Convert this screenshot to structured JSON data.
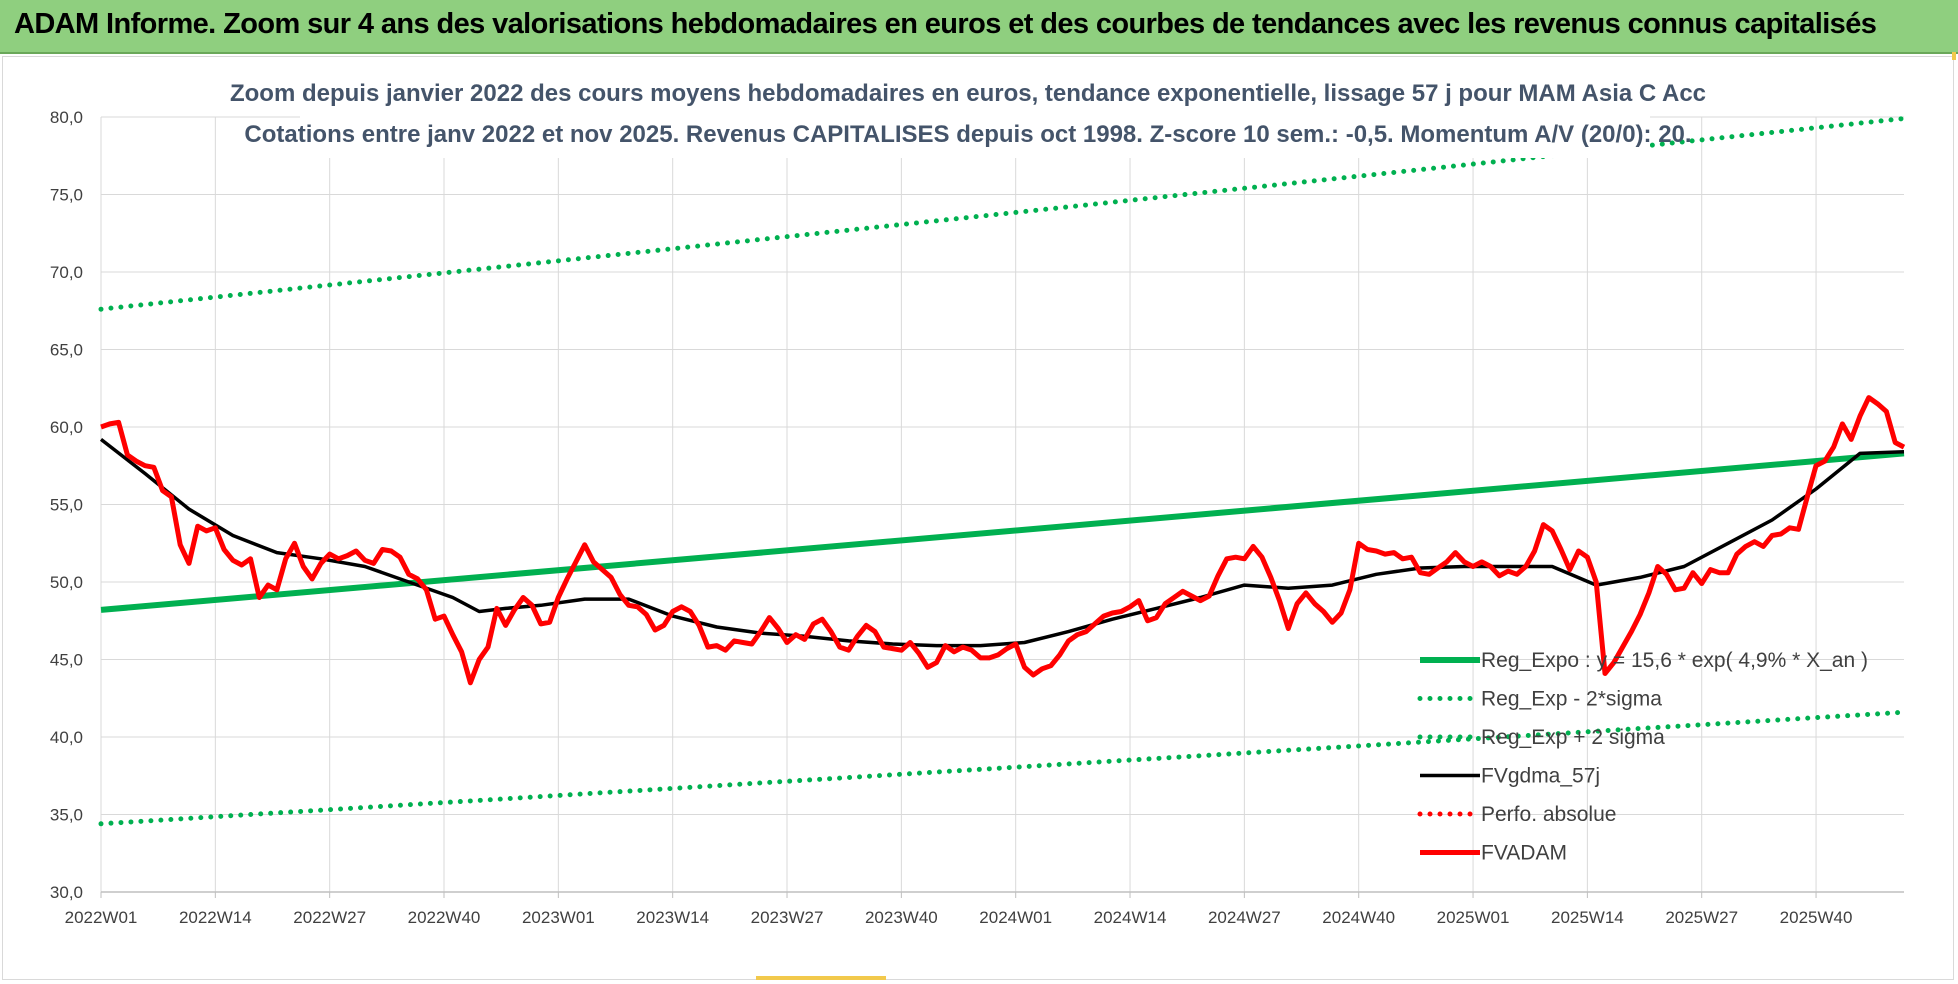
{
  "banner": {
    "title": "ADAM Informe. Zoom sur 4 ans des valorisations hebdomadaires en euros et des courbes de tendances avec les revenus connus capitalisés"
  },
  "chart_data": {
    "type": "line",
    "title": "",
    "subtitle_lines": [
      "Zoom depuis janvier 2022 des cours moyens hebdomadaires en euros, tendance exponentielle, lissage 57 j pour MAM Asia C Acc",
      "Cotations entre janv 2022 et nov 2025. Revenus CAPITALISES depuis oct 1998. Z-score 10 sem.: -0,5. Momentum A/V (20/0): 20."
    ],
    "xlabel": "",
    "ylabel": "",
    "ylim": [
      30,
      80
    ],
    "yticks": [
      "30,0",
      "35,0",
      "40,0",
      "45,0",
      "50,0",
      "55,0",
      "60,0",
      "65,0",
      "70,0",
      "75,0",
      "80,0"
    ],
    "xticks": [
      "2022W01",
      "2022W14",
      "2022W27",
      "2022W40",
      "2023W01",
      "2023W14",
      "2023W27",
      "2023W40",
      "2024W01",
      "2024W14",
      "2024W27",
      "2024W40",
      "2025W01",
      "2025W14",
      "2025W27",
      "2025W40"
    ],
    "xtick_week_index": [
      0,
      13,
      26,
      39,
      52,
      65,
      78,
      91,
      104,
      117,
      130,
      143,
      156,
      169,
      182,
      195
    ],
    "x_range_weeks": [
      0,
      205
    ],
    "grid": true,
    "legend_position": "right",
    "series": [
      {
        "name": "Reg_Expo : y = 15,6 * exp( 4,9% *  X_an )",
        "style": "solid-thick",
        "color": "#00b050",
        "x": [
          0,
          205
        ],
        "values": [
          48.2,
          58.3
        ]
      },
      {
        "name": "Reg_Exp - 2*sigma",
        "style": "dotted",
        "color": "#00b050",
        "x": [
          0,
          205
        ],
        "values": [
          34.4,
          41.6
        ]
      },
      {
        "name": "Reg_Exp + 2 sigma",
        "style": "dotted",
        "color": "#00b050",
        "x": [
          0,
          205
        ],
        "values": [
          67.6,
          79.9
        ]
      },
      {
        "name": "FVgdma_57j",
        "style": "solid",
        "color": "#000000",
        "x": [
          0,
          5,
          10,
          15,
          20,
          25,
          30,
          35,
          40,
          43,
          46,
          50,
          55,
          60,
          65,
          70,
          75,
          80,
          85,
          90,
          95,
          100,
          105,
          110,
          115,
          120,
          125,
          130,
          135,
          140,
          145,
          150,
          155,
          160,
          165,
          170,
          175,
          180,
          185,
          190,
          195,
          200,
          205
        ],
        "values": [
          59.2,
          57.0,
          54.7,
          53.0,
          51.9,
          51.5,
          51.0,
          50.0,
          49.0,
          48.1,
          48.3,
          48.5,
          48.9,
          48.9,
          47.8,
          47.1,
          46.7,
          46.5,
          46.2,
          46.0,
          45.9,
          45.9,
          46.1,
          46.8,
          47.6,
          48.3,
          49.0,
          49.8,
          49.6,
          49.8,
          50.5,
          50.9,
          51.0,
          51.0,
          51.0,
          49.8,
          50.3,
          51.0,
          52.5,
          54.0,
          56.0,
          58.3,
          58.4
        ]
      },
      {
        "name": "Perfo. absolue",
        "style": "dotted",
        "color": "#ff0000",
        "x": [],
        "values": []
      },
      {
        "name": "FVADAM",
        "style": "solid-thick",
        "color": "#ff0000",
        "x": [
          0,
          1,
          2,
          3,
          4,
          5,
          6,
          7,
          8,
          9,
          10,
          11,
          12,
          13,
          14,
          15,
          16,
          17,
          18,
          19,
          20,
          21,
          22,
          23,
          24,
          25,
          26,
          27,
          28,
          29,
          30,
          31,
          32,
          33,
          34,
          35,
          36,
          37,
          38,
          39,
          40,
          41,
          42,
          43,
          44,
          45,
          46,
          47,
          48,
          49,
          50,
          51,
          52,
          53,
          54,
          55,
          56,
          57,
          58,
          59,
          60,
          61,
          62,
          63,
          64,
          65,
          66,
          67,
          68,
          69,
          70,
          71,
          72,
          73,
          74,
          75,
          76,
          77,
          78,
          79,
          80,
          81,
          82,
          83,
          84,
          85,
          86,
          87,
          88,
          89,
          90,
          91,
          92,
          93,
          94,
          95,
          96,
          97,
          98,
          99,
          100,
          101,
          102,
          103,
          104,
          105,
          106,
          107,
          108,
          109,
          110,
          111,
          112,
          113,
          114,
          115,
          116,
          117,
          118,
          119,
          120,
          121,
          122,
          123,
          124,
          125,
          126,
          127,
          128,
          129,
          130,
          131,
          132,
          133,
          134,
          135,
          136,
          137,
          138,
          139,
          140,
          141,
          142,
          143,
          144,
          145,
          146,
          147,
          148,
          149,
          150,
          151,
          152,
          153,
          154,
          155,
          156,
          157,
          158,
          159,
          160,
          161,
          162,
          163,
          164,
          165,
          166,
          167,
          168,
          169,
          170,
          171,
          172,
          173,
          174,
          175,
          176,
          177,
          178,
          179,
          180,
          181,
          182,
          183,
          184,
          185,
          186,
          187,
          188,
          189,
          190,
          191,
          192,
          193,
          194,
          195,
          196,
          197,
          198,
          199,
          200,
          201,
          202,
          203,
          204,
          205
        ],
        "values": [
          60.0,
          60.2,
          60.3,
          58.2,
          57.8,
          57.5,
          57.4,
          55.9,
          55.5,
          52.4,
          51.2,
          53.6,
          53.3,
          53.5,
          52.1,
          51.4,
          51.1,
          51.5,
          49.0,
          49.8,
          49.5,
          51.5,
          52.5,
          51.0,
          50.2,
          51.2,
          51.8,
          51.5,
          51.7,
          52.0,
          51.4,
          51.2,
          52.1,
          52.0,
          51.6,
          50.5,
          50.2,
          49.5,
          47.6,
          47.8,
          46.6,
          45.5,
          43.5,
          45.0,
          45.8,
          48.3,
          47.2,
          48.2,
          49.0,
          48.5,
          47.3,
          47.4,
          49.0,
          50.2,
          51.3,
          52.4,
          51.3,
          50.8,
          50.3,
          49.2,
          48.5,
          48.4,
          47.9,
          46.9,
          47.2,
          48.1,
          48.4,
          48.1,
          47.2,
          45.8,
          45.9,
          45.6,
          46.2,
          46.1,
          46.0,
          46.8,
          47.7,
          47.0,
          46.1,
          46.6,
          46.3,
          47.3,
          47.6,
          46.8,
          45.8,
          45.6,
          46.5,
          47.2,
          46.8,
          45.8,
          45.7,
          45.6,
          46.1,
          45.4,
          44.5,
          44.8,
          45.9,
          45.5,
          45.8,
          45.6,
          45.1,
          45.1,
          45.3,
          45.7,
          46.0,
          44.5,
          44.0,
          44.4,
          44.6,
          45.3,
          46.2,
          46.6,
          46.8,
          47.3,
          47.8,
          48.0,
          48.1,
          48.4,
          48.8,
          47.5,
          47.7,
          48.6,
          49.0,
          49.4,
          49.1,
          48.8,
          49.1,
          50.4,
          51.5,
          51.6,
          51.5,
          52.3,
          51.6,
          50.3,
          48.8,
          47.0,
          48.6,
          49.3,
          48.6,
          48.1,
          47.4,
          48.0,
          49.5,
          52.5,
          52.1,
          52.0,
          51.8,
          51.9,
          51.5,
          51.6,
          50.6,
          50.5,
          50.9,
          51.3,
          51.9,
          51.3,
          51.0,
          51.3,
          51.0,
          50.4,
          50.7,
          50.5,
          51.0,
          52.0,
          53.7,
          53.3,
          52.1,
          50.8,
          52.0,
          51.6,
          50.0,
          44.1,
          44.8,
          45.8,
          46.8,
          47.9,
          49.3,
          51.0,
          50.5,
          49.5,
          49.6,
          50.6,
          49.9,
          50.8,
          50.6,
          50.6,
          51.8,
          52.3,
          52.6,
          52.3,
          53.0,
          53.1,
          53.5,
          53.4,
          55.5,
          57.5,
          57.8,
          58.7,
          60.2,
          59.2,
          60.7,
          61.9,
          61.5,
          61.0,
          59.0,
          58.7
        ]
      }
    ]
  },
  "legend": {
    "items": [
      {
        "label": "Reg_Expo : y = 15,6 * exp( 4,9% *  X_an )",
        "color": "#00b050",
        "style": "solid-thick"
      },
      {
        "label": "Reg_Exp - 2*sigma",
        "color": "#00b050",
        "style": "dotted"
      },
      {
        "label": "Reg_Exp + 2 sigma",
        "color": "#00b050",
        "style": "dotted"
      },
      {
        "label": "FVgdma_57j",
        "color": "#000000",
        "style": "solid"
      },
      {
        "label": "Perfo. absolue",
        "color": "#ff0000",
        "style": "dotted"
      },
      {
        "label": "FVADAM",
        "color": "#ff0000",
        "style": "solid-thick"
      }
    ]
  },
  "colors": {
    "banner_bg": "#8fcf7f",
    "gridline": "#d9d9d9",
    "subtitle": "#44546a",
    "axis_text": "#404040"
  }
}
